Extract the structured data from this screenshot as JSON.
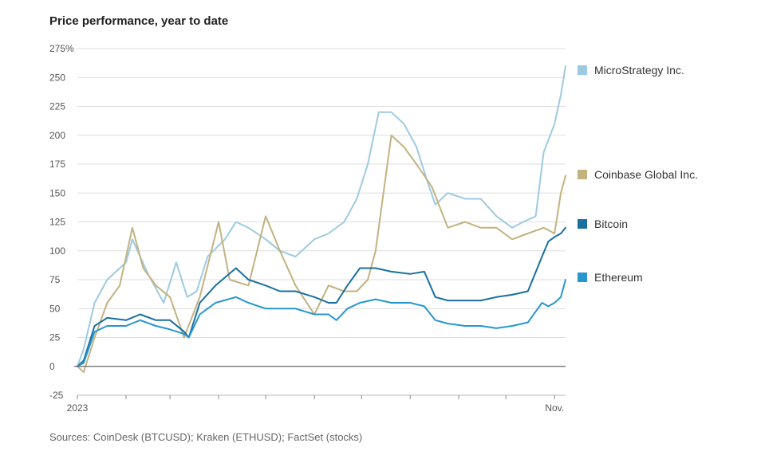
{
  "chart_data": {
    "type": "line",
    "title": "Price performance, year to date",
    "source": "Sources: CoinDesk (BTCUSD); Kraken (ETHUSD); FactSet (stocks)",
    "y_unit": "%",
    "ylim": [
      -25,
      275
    ],
    "yticks": [
      -25,
      0,
      25,
      50,
      75,
      100,
      125,
      150,
      175,
      200,
      225,
      250,
      275
    ],
    "xlim": [
      "2023-01-01",
      "2023-11-08"
    ],
    "x_tick_labels": [
      {
        "x": "2023-01-01",
        "label": "2023"
      },
      {
        "x": "2023-11-01",
        "label": "Nov."
      }
    ],
    "x_tick_marks": [
      "2023-01-01",
      "2023-02-01",
      "2023-03-01",
      "2023-04-01",
      "2023-05-01",
      "2023-06-01",
      "2023-07-01",
      "2023-08-01",
      "2023-09-01",
      "2023-10-01",
      "2023-11-01"
    ],
    "grid": true,
    "legend_position": "right",
    "series": [
      {
        "name": "MicroStrategy Inc.",
        "color": "#9ecae1",
        "x": [
          "2023-01-01",
          "2023-01-05",
          "2023-01-12",
          "2023-01-20",
          "2023-02-01",
          "2023-02-05",
          "2023-02-15",
          "2023-02-25",
          "2023-03-05",
          "2023-03-12",
          "2023-03-18",
          "2023-03-25",
          "2023-04-05",
          "2023-04-12",
          "2023-04-20",
          "2023-05-01",
          "2023-05-10",
          "2023-05-20",
          "2023-06-01",
          "2023-06-10",
          "2023-06-20",
          "2023-06-28",
          "2023-07-05",
          "2023-07-12",
          "2023-07-20",
          "2023-07-28",
          "2023-08-05",
          "2023-08-12",
          "2023-08-17",
          "2023-08-25",
          "2023-09-05",
          "2023-09-15",
          "2023-09-25",
          "2023-10-05",
          "2023-10-12",
          "2023-10-20",
          "2023-10-25",
          "2023-11-01",
          "2023-11-05",
          "2023-11-08"
        ],
        "values": [
          0,
          15,
          55,
          75,
          90,
          110,
          80,
          55,
          90,
          60,
          65,
          95,
          110,
          125,
          120,
          110,
          100,
          95,
          110,
          115,
          125,
          145,
          175,
          220,
          220,
          210,
          190,
          160,
          140,
          150,
          145,
          145,
          130,
          120,
          125,
          130,
          185,
          210,
          235,
          260
        ]
      },
      {
        "name": "Coinbase Global Inc.",
        "color": "#c2b280",
        "x": [
          "2023-01-01",
          "2023-01-05",
          "2023-01-12",
          "2023-01-20",
          "2023-01-28",
          "2023-02-05",
          "2023-02-12",
          "2023-02-20",
          "2023-03-01",
          "2023-03-10",
          "2023-03-20",
          "2023-04-01",
          "2023-04-08",
          "2023-04-20",
          "2023-05-01",
          "2023-05-10",
          "2023-05-20",
          "2023-06-01",
          "2023-06-10",
          "2023-06-20",
          "2023-06-28",
          "2023-07-05",
          "2023-07-10",
          "2023-07-15",
          "2023-07-20",
          "2023-07-28",
          "2023-08-05",
          "2023-08-15",
          "2023-08-25",
          "2023-09-05",
          "2023-09-15",
          "2023-09-25",
          "2023-10-05",
          "2023-10-15",
          "2023-10-25",
          "2023-11-01",
          "2023-11-05",
          "2023-11-08"
        ],
        "values": [
          0,
          -5,
          25,
          55,
          70,
          120,
          85,
          70,
          60,
          25,
          60,
          125,
          75,
          70,
          130,
          100,
          70,
          45,
          70,
          65,
          65,
          75,
          100,
          150,
          200,
          190,
          175,
          155,
          120,
          125,
          120,
          120,
          110,
          115,
          120,
          115,
          150,
          165
        ]
      },
      {
        "name": "Bitcoin",
        "color": "#1a6fa0",
        "x": [
          "2023-01-01",
          "2023-01-05",
          "2023-01-12",
          "2023-01-20",
          "2023-02-01",
          "2023-02-10",
          "2023-02-20",
          "2023-03-01",
          "2023-03-10",
          "2023-03-13",
          "2023-03-20",
          "2023-03-30",
          "2023-04-12",
          "2023-04-20",
          "2023-05-01",
          "2023-05-10",
          "2023-05-20",
          "2023-06-01",
          "2023-06-10",
          "2023-06-15",
          "2023-06-22",
          "2023-06-30",
          "2023-07-10",
          "2023-07-20",
          "2023-08-01",
          "2023-08-10",
          "2023-08-17",
          "2023-08-25",
          "2023-09-05",
          "2023-09-15",
          "2023-09-25",
          "2023-10-05",
          "2023-10-15",
          "2023-10-24",
          "2023-10-28",
          "2023-11-01",
          "2023-11-05",
          "2023-11-08"
        ],
        "values": [
          0,
          5,
          35,
          42,
          40,
          45,
          40,
          40,
          30,
          25,
          55,
          70,
          85,
          75,
          70,
          65,
          65,
          60,
          55,
          55,
          70,
          85,
          85,
          82,
          80,
          82,
          60,
          57,
          57,
          57,
          60,
          62,
          65,
          95,
          108,
          112,
          115,
          120
        ]
      },
      {
        "name": "Ethereum",
        "color": "#2696cf",
        "x": [
          "2023-01-01",
          "2023-01-05",
          "2023-01-12",
          "2023-01-20",
          "2023-02-01",
          "2023-02-10",
          "2023-02-20",
          "2023-03-01",
          "2023-03-10",
          "2023-03-13",
          "2023-03-20",
          "2023-03-30",
          "2023-04-12",
          "2023-04-20",
          "2023-05-01",
          "2023-05-10",
          "2023-05-20",
          "2023-06-01",
          "2023-06-10",
          "2023-06-15",
          "2023-06-22",
          "2023-06-30",
          "2023-07-10",
          "2023-07-20",
          "2023-08-01",
          "2023-08-10",
          "2023-08-17",
          "2023-08-25",
          "2023-09-05",
          "2023-09-15",
          "2023-09-25",
          "2023-10-05",
          "2023-10-15",
          "2023-10-24",
          "2023-10-28",
          "2023-11-01",
          "2023-11-05",
          "2023-11-08"
        ],
        "values": [
          0,
          3,
          30,
          35,
          35,
          40,
          35,
          32,
          28,
          25,
          45,
          55,
          60,
          55,
          50,
          50,
          50,
          45,
          45,
          40,
          50,
          55,
          58,
          55,
          55,
          52,
          40,
          37,
          35,
          35,
          33,
          35,
          38,
          55,
          52,
          55,
          60,
          75
        ]
      }
    ]
  }
}
